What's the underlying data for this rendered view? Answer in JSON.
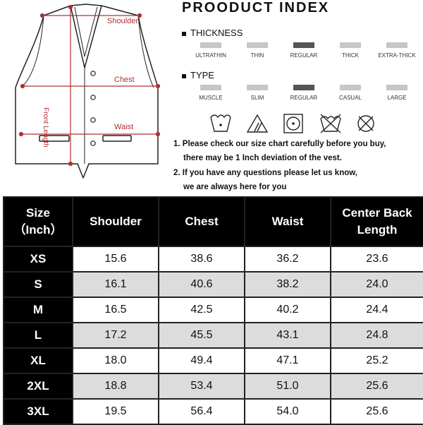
{
  "diagram": {
    "labels": {
      "shoulder": "Shoulder",
      "chest": "Chest",
      "waist": "Waist",
      "front_length": "Front Length"
    }
  },
  "index": {
    "title": "PROODUCT INDEX",
    "thickness": {
      "heading": "THICKNESS",
      "options": [
        "ULTRATHIN",
        "THIN",
        "REGULAR",
        "THICK",
        "EXTRA-THICK"
      ],
      "selected": "REGULAR"
    },
    "type": {
      "heading": "TYPE",
      "options": [
        "MUSCLE",
        "SLIM",
        "REGULAR",
        "CASUAL",
        "LARGE"
      ],
      "selected": "REGULAR"
    },
    "care_icons": [
      "wash-30-icon",
      "no-bleach-icon",
      "tumble-dry-icon",
      "no-dry-clean-icon",
      "no-iron-icon"
    ],
    "notes": {
      "n1a": "1. Please check our size chart carefully before you buy,",
      "n1b": "there may be 1 Inch deviation of the vest.",
      "n2a": "2. If you have any questions please let us know,",
      "n2b": "we are always here for you"
    }
  },
  "table": {
    "headers": {
      "size_line1": "Size",
      "size_line2": "（Inch）",
      "shoulder": "Shoulder",
      "chest": "Chest",
      "waist": "Waist",
      "length_line1": "Center Back",
      "length_line2": "Length"
    },
    "rows": [
      {
        "size": "XS",
        "shoulder": "15.6",
        "chest": "38.6",
        "waist": "36.2",
        "length": "23.6"
      },
      {
        "size": "S",
        "shoulder": "16.1",
        "chest": "40.6",
        "waist": "38.2",
        "length": "24.0"
      },
      {
        "size": "M",
        "shoulder": "16.5",
        "chest": "42.5",
        "waist": "40.2",
        "length": "24.4"
      },
      {
        "size": "L",
        "shoulder": "17.2",
        "chest": "45.5",
        "waist": "43.1",
        "length": "24.8"
      },
      {
        "size": "XL",
        "shoulder": "18.0",
        "chest": "49.4",
        "waist": "47.1",
        "length": "25.2"
      },
      {
        "size": "2XL",
        "shoulder": "18.8",
        "chest": "53.4",
        "waist": "51.0",
        "length": "25.6"
      },
      {
        "size": "3XL",
        "shoulder": "19.5",
        "chest": "56.4",
        "waist": "54.0",
        "length": "25.6"
      }
    ]
  },
  "colors": {
    "measure_line": "#b03030",
    "header_bg": "#000000",
    "stripe": "#dcdcdc",
    "selected_bar": "#555555",
    "bar": "#c6c6c6"
  }
}
